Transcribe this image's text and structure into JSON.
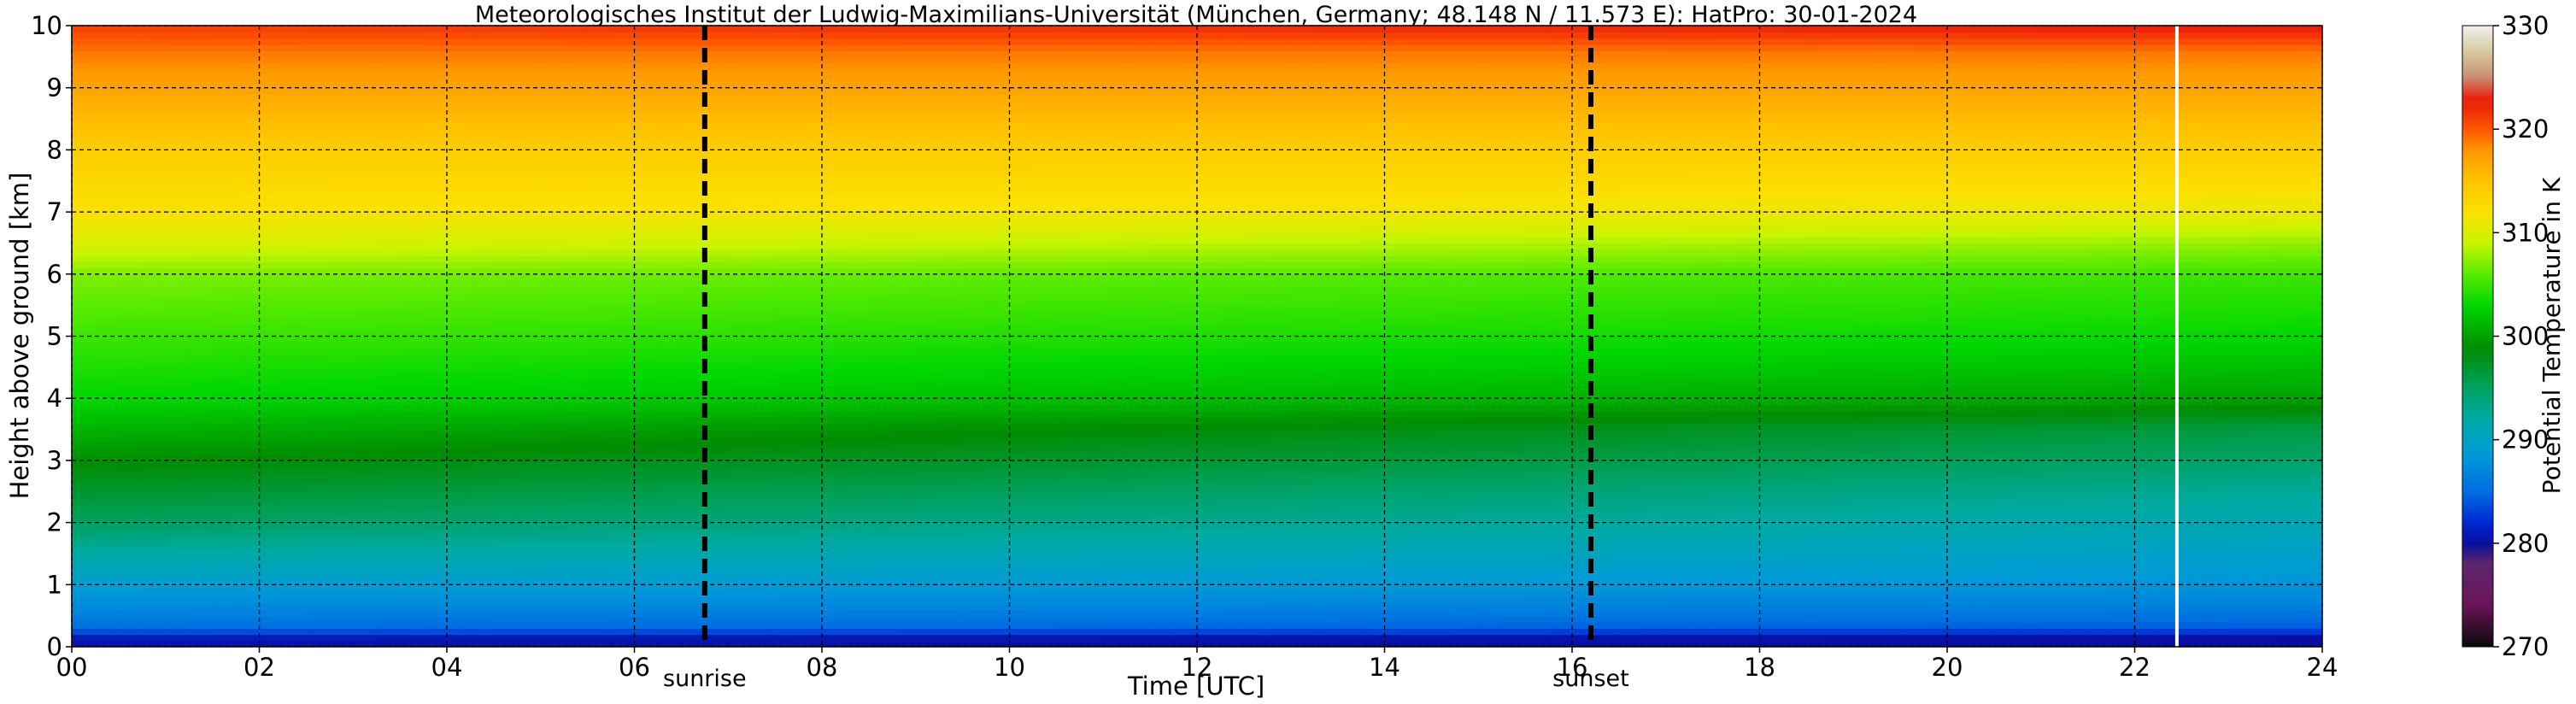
{
  "chart_data": {
    "type": "heatmap",
    "title": "Meteorologisches Institut der Ludwig-Maximilians-Universität (München, Germany; 48.148 N / 11.573 E):    HatPro: 30-01-2024",
    "xlabel": "Time [UTC]",
    "ylabel": "Height above ground [km]",
    "xlim": [
      0,
      24
    ],
    "ylim": [
      0,
      10
    ],
    "x_ticks": [
      "00",
      "02",
      "04",
      "06",
      "08",
      "10",
      "12",
      "14",
      "16",
      "18",
      "20",
      "22",
      "24"
    ],
    "y_ticks": [
      "0",
      "1",
      "2",
      "3",
      "4",
      "5",
      "6",
      "7",
      "8",
      "9",
      "10"
    ],
    "grid": true,
    "colorbar": {
      "label": "Potential Temperature in K",
      "range": [
        270,
        330
      ],
      "ticks": [
        "270",
        "280",
        "290",
        "300",
        "310",
        "320",
        "330"
      ]
    },
    "markers": [
      {
        "label": "sunrise",
        "time": 6.75
      },
      {
        "label": "sunset",
        "time": 16.2
      }
    ],
    "data_gap_time": 22.45,
    "theta_profile": {
      "height_km": [
        0.0,
        0.15,
        0.3,
        0.6,
        1.0,
        1.5,
        2.0,
        2.5,
        3.0,
        3.5,
        4.0,
        5.0,
        6.0,
        6.5,
        7.0,
        8.0,
        9.0,
        9.6,
        10.0
      ],
      "theta_at_00_K": [
        280,
        281,
        285,
        287,
        289,
        292,
        295,
        297,
        299,
        301,
        303,
        305,
        307,
        310,
        312,
        314,
        317,
        319,
        321
      ],
      "theta_at_24_K": [
        280,
        280,
        284,
        286,
        288,
        289.5,
        291,
        292.5,
        294.5,
        296,
        300,
        303,
        305,
        307.5,
        311,
        314,
        317,
        319,
        323
      ]
    }
  }
}
